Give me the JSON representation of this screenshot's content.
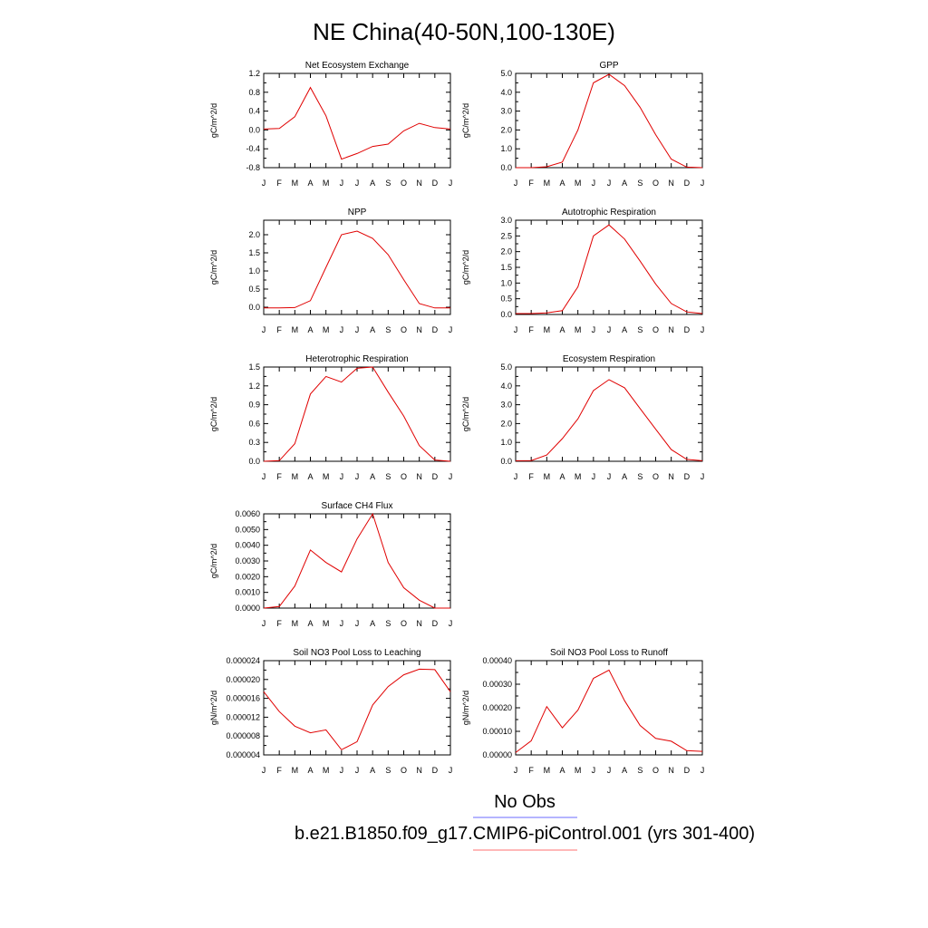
{
  "figure": {
    "title": "NE China(40-50N,100-130E)",
    "legend": [
      {
        "label": "No Obs",
        "color": "#6b6bff"
      },
      {
        "label": "b.e21.B1850.f09_g17.CMIP6-piControl.001 (yrs 301-400)",
        "color": "#ff7070"
      }
    ]
  },
  "chart_data": [
    {
      "type": "line",
      "title": "Net Ecosystem Exchange",
      "ylabel": "gC/m^2/d",
      "categories": [
        "J",
        "F",
        "M",
        "A",
        "M",
        "J",
        "J",
        "A",
        "S",
        "O",
        "N",
        "D",
        "J"
      ],
      "yticks": [
        "1.2",
        "0.8",
        "0.4",
        "0.0",
        "-0.4",
        "-0.8"
      ],
      "ylim": [
        -0.8,
        1.2
      ],
      "series": [
        {
          "values": [
            0.02,
            0.03,
            0.28,
            0.9,
            0.3,
            -0.62,
            -0.5,
            -0.35,
            -0.3,
            -0.02,
            0.14,
            0.05,
            0.02
          ]
        }
      ]
    },
    {
      "type": "line",
      "title": "GPP",
      "ylabel": "gC/m^2/d",
      "categories": [
        "J",
        "F",
        "M",
        "A",
        "M",
        "J",
        "J",
        "A",
        "S",
        "O",
        "N",
        "D",
        "J"
      ],
      "yticks": [
        "5.0",
        "4.0",
        "3.0",
        "2.0",
        "1.0",
        "0.0"
      ],
      "ylim": [
        0,
        5
      ],
      "series": [
        {
          "values": [
            0.0,
            0.0,
            0.05,
            0.3,
            2.0,
            4.5,
            4.95,
            4.35,
            3.2,
            1.75,
            0.45,
            0.03,
            0.0
          ]
        }
      ]
    },
    {
      "type": "line",
      "title": "NPP",
      "ylabel": "gC/m^2/d",
      "categories": [
        "J",
        "F",
        "M",
        "A",
        "M",
        "J",
        "J",
        "A",
        "S",
        "O",
        "N",
        "D",
        "J"
      ],
      "yticks": [
        "2.0",
        "1.5",
        "1.0",
        "0.5",
        "0.0"
      ],
      "ylim": [
        -0.2,
        2.4
      ],
      "series": [
        {
          "values": [
            -0.02,
            -0.02,
            -0.01,
            0.18,
            1.1,
            2.0,
            2.1,
            1.9,
            1.45,
            0.76,
            0.1,
            -0.02,
            -0.02
          ]
        }
      ]
    },
    {
      "type": "line",
      "title": "Autotrophic Respiration",
      "ylabel": "gC/m^2/d",
      "categories": [
        "J",
        "F",
        "M",
        "A",
        "M",
        "J",
        "J",
        "A",
        "S",
        "O",
        "N",
        "D",
        "J"
      ],
      "yticks": [
        "3.0",
        "2.5",
        "2.0",
        "1.5",
        "1.0",
        "0.5",
        "0.0"
      ],
      "ylim": [
        0,
        3
      ],
      "series": [
        {
          "values": [
            0.03,
            0.03,
            0.05,
            0.12,
            0.88,
            2.5,
            2.85,
            2.4,
            1.7,
            0.97,
            0.35,
            0.08,
            0.03
          ]
        }
      ]
    },
    {
      "type": "line",
      "title": "Heterotrophic Respiration",
      "ylabel": "gC/m^2/d",
      "categories": [
        "J",
        "F",
        "M",
        "A",
        "M",
        "J",
        "J",
        "A",
        "S",
        "O",
        "N",
        "D",
        "J"
      ],
      "yticks": [
        "1.5",
        "1.2",
        "0.9",
        "0.6",
        "0.3",
        "0.0"
      ],
      "ylim": [
        0,
        1.5
      ],
      "series": [
        {
          "values": [
            0.0,
            0.01,
            0.28,
            1.07,
            1.35,
            1.26,
            1.48,
            1.5,
            1.1,
            0.72,
            0.25,
            0.02,
            0.0
          ]
        }
      ]
    },
    {
      "type": "line",
      "title": "Ecosystem Respiration",
      "ylabel": "gC/m^2/d",
      "categories": [
        "J",
        "F",
        "M",
        "A",
        "M",
        "J",
        "J",
        "A",
        "S",
        "O",
        "N",
        "D",
        "J"
      ],
      "yticks": [
        "5.0",
        "4.0",
        "3.0",
        "2.0",
        "1.0",
        "0.0"
      ],
      "ylim": [
        0,
        5
      ],
      "series": [
        {
          "values": [
            0.03,
            0.04,
            0.33,
            1.2,
            2.25,
            3.75,
            4.33,
            3.9,
            2.8,
            1.7,
            0.62,
            0.1,
            0.03
          ]
        }
      ]
    },
    {
      "type": "line",
      "title": "Surface CH4 Flux",
      "ylabel": "gC/m^2/d",
      "categories": [
        "J",
        "F",
        "M",
        "A",
        "M",
        "J",
        "J",
        "A",
        "S",
        "O",
        "N",
        "D",
        "J"
      ],
      "yticks": [
        "0.0060",
        "0.0050",
        "0.0040",
        "0.0030",
        "0.0020",
        "0.0010",
        "0.0000"
      ],
      "ylim": [
        0,
        0.006
      ],
      "series": [
        {
          "values": [
            0.0,
            0.0001,
            0.0014,
            0.0037,
            0.0029,
            0.0023,
            0.0044,
            0.006,
            0.0029,
            0.0013,
            0.0005,
            0.0,
            0.0
          ]
        }
      ]
    },
    {
      "type": "line",
      "title": "Soil NO3 Pool Loss to Leaching",
      "ylabel": "gN/m^2/d",
      "categories": [
        "J",
        "F",
        "M",
        "A",
        "M",
        "J",
        "J",
        "A",
        "S",
        "O",
        "N",
        "D",
        "J"
      ],
      "yticks": [
        "0.000024",
        "0.000020",
        "0.000016",
        "0.000012",
        "0.000008",
        "0.000004"
      ],
      "ylim": [
        4e-06,
        2.4e-05
      ],
      "series": [
        {
          "values": [
            1.74e-05,
            1.32e-05,
            1.01e-05,
            8.7e-06,
            9.3e-06,
            5.1e-06,
            6.8e-06,
            1.46e-05,
            1.85e-05,
            2.1e-05,
            2.22e-05,
            2.21e-05,
            1.74e-05
          ]
        }
      ]
    },
    {
      "type": "line",
      "title": "Soil NO3 Pool Loss to Runoff",
      "ylabel": "gN/m^2/d",
      "categories": [
        "J",
        "F",
        "M",
        "A",
        "M",
        "J",
        "J",
        "A",
        "S",
        "O",
        "N",
        "D",
        "J"
      ],
      "yticks": [
        "0.00040",
        "0.00030",
        "0.00020",
        "0.00010",
        "0.00000"
      ],
      "ylim": [
        0,
        0.0004
      ],
      "series": [
        {
          "values": [
            1e-05,
            6e-05,
            0.000205,
            0.000115,
            0.00019,
            0.000325,
            0.00036,
            0.00023,
            0.000125,
            7e-05,
            5.8e-05,
            1.8e-05,
            1.5e-05
          ]
        }
      ]
    }
  ]
}
